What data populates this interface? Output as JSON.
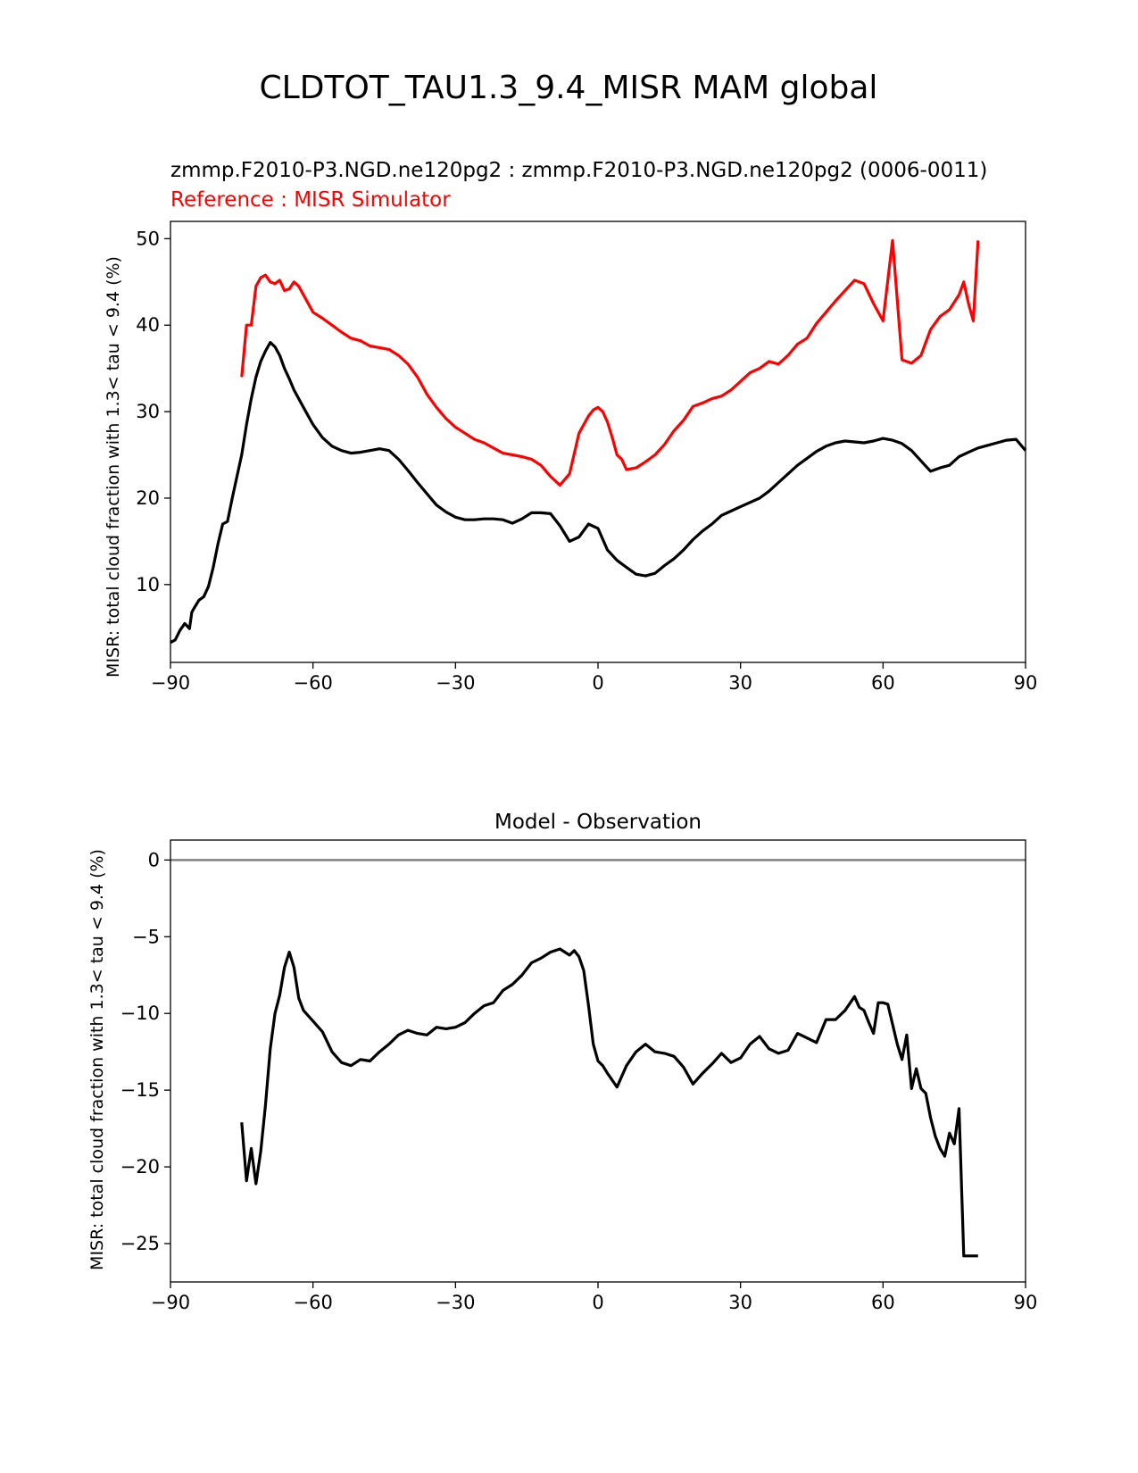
{
  "figure_title": "CLDTOT_TAU1.3_9.4_MISR MAM global",
  "colors": {
    "test": "#000000",
    "reference": "#ff0000",
    "zero_line": "#808080"
  },
  "chart_data": [
    {
      "type": "line",
      "title_left": "zmmp.F2010-P3.NGD.ne120pg2 : zmmp.F2010-P3.NGD.ne120pg2 (0006-0011)",
      "title_ref": "Reference : MISR Simulator",
      "xlabel": "",
      "ylabel": "MISR: total cloud fraction with 1.3< tau < 9.4 (%)",
      "xlim": [
        -90,
        90
      ],
      "ylim": [
        1,
        52
      ],
      "xticks": [
        -90,
        -60,
        -30,
        0,
        30,
        60,
        90
      ],
      "xtick_labels": [
        "−90",
        "−60",
        "−30",
        "0",
        "30",
        "60",
        "90"
      ],
      "yticks": [
        10,
        20,
        30,
        40,
        50
      ],
      "ytick_labels": [
        "10",
        "20",
        "30",
        "40",
        "50"
      ],
      "series": [
        {
          "name": "zmmp.F2010-P3.NGD.ne120pg2",
          "color": "#000000",
          "x": [
            -90,
            -89,
            -88,
            -87,
            -86,
            -85.5,
            -85,
            -84,
            -83,
            -82,
            -81,
            -80,
            -79,
            -78,
            -77,
            -76,
            -75,
            -74,
            -73,
            -72,
            -71,
            -70,
            -69,
            -68,
            -67,
            -66,
            -65,
            -64,
            -63,
            -62,
            -60,
            -58,
            -56,
            -54,
            -52,
            -50,
            -48,
            -46,
            -44,
            -42,
            -40,
            -38,
            -36,
            -34,
            -32,
            -30,
            -28,
            -26,
            -24,
            -22,
            -20,
            -18,
            -16,
            -14,
            -12,
            -10,
            -8,
            -6,
            -4,
            -2,
            0,
            2,
            4,
            6,
            8,
            10,
            12,
            14,
            16,
            18,
            20,
            22,
            24,
            26,
            28,
            30,
            32,
            34,
            36,
            38,
            40,
            42,
            44,
            46,
            48,
            50,
            52,
            54,
            56,
            58,
            60,
            62,
            64,
            66,
            68,
            70,
            72,
            74,
            76,
            78,
            80,
            82,
            84,
            86,
            88,
            90
          ],
          "y": [
            3.3,
            3.6,
            4.7,
            5.5,
            4.9,
            6.8,
            7.3,
            8.2,
            8.6,
            9.8,
            12.0,
            14.7,
            17.0,
            17.3,
            20.0,
            22.5,
            25.0,
            28.5,
            31.5,
            34.0,
            35.8,
            37.0,
            38.0,
            37.5,
            36.5,
            35.0,
            33.8,
            32.5,
            31.5,
            30.5,
            28.5,
            27.0,
            26.0,
            25.5,
            25.2,
            25.3,
            25.5,
            25.7,
            25.5,
            24.5,
            23.2,
            21.8,
            20.5,
            19.2,
            18.4,
            17.8,
            17.5,
            17.5,
            17.6,
            17.6,
            17.5,
            17.1,
            17.6,
            18.3,
            18.3,
            18.2,
            16.8,
            15.0,
            15.5,
            17.0,
            16.5,
            14.0,
            12.8,
            12.0,
            11.2,
            11.0,
            11.3,
            12.2,
            13.0,
            14.0,
            15.2,
            16.2,
            17.0,
            18.0,
            18.5,
            19.0,
            19.5,
            20.0,
            20.8,
            21.8,
            22.8,
            23.8,
            24.6,
            25.4,
            26.0,
            26.4,
            26.6,
            26.5,
            26.4,
            26.6,
            26.9,
            26.7,
            26.3,
            25.5,
            24.3,
            23.1,
            23.5,
            23.8,
            24.8,
            25.3,
            25.8,
            26.1,
            26.4,
            26.7,
            26.8,
            25.5
          ]
        },
        {
          "name": "MISR Simulator",
          "color": "#ff0000",
          "x": [
            -75,
            -74,
            -73,
            -72,
            -71,
            -70,
            -69,
            -68,
            -67,
            -66,
            -65,
            -64,
            -63,
            -62,
            -60,
            -58,
            -56,
            -54,
            -52,
            -50,
            -48,
            -46,
            -44,
            -42,
            -40,
            -38,
            -36,
            -34,
            -32,
            -30,
            -28,
            -26,
            -24,
            -22,
            -20,
            -18,
            -16,
            -14,
            -12,
            -10,
            -8,
            -6,
            -4,
            -2,
            -1,
            0,
            1,
            2,
            3,
            4,
            5,
            6,
            8,
            10,
            12,
            14,
            16,
            18,
            20,
            22,
            24,
            26,
            28,
            30,
            32,
            34,
            36,
            38,
            40,
            42,
            44,
            46,
            48,
            50,
            52,
            54,
            56,
            58,
            60,
            62,
            64,
            66,
            68,
            69,
            70,
            72,
            74,
            76,
            77,
            78,
            79,
            80
          ],
          "y": [
            34.0,
            40.0,
            40.0,
            44.5,
            45.5,
            45.8,
            45.0,
            44.8,
            45.2,
            44.0,
            44.2,
            45.0,
            44.5,
            43.5,
            41.5,
            40.8,
            40.0,
            39.2,
            38.5,
            38.2,
            37.6,
            37.4,
            37.2,
            36.5,
            35.5,
            34.0,
            32.0,
            30.5,
            29.2,
            28.2,
            27.5,
            26.8,
            26.4,
            25.8,
            25.2,
            25.0,
            24.8,
            24.5,
            23.8,
            22.5,
            21.5,
            22.8,
            27.5,
            29.5,
            30.2,
            30.5,
            30.0,
            28.8,
            27.0,
            25.0,
            24.5,
            23.3,
            23.5,
            24.2,
            25.0,
            26.2,
            27.8,
            29.0,
            30.6,
            31.0,
            31.5,
            31.8,
            32.5,
            33.5,
            34.5,
            35.0,
            35.8,
            35.5,
            36.5,
            37.8,
            38.5,
            40.2,
            41.5,
            42.8,
            44.0,
            45.2,
            44.8,
            42.5,
            40.5,
            49.8,
            36.0,
            35.6,
            36.5,
            38.0,
            39.5,
            41.0,
            41.8,
            43.5,
            45.0,
            42.5,
            40.5,
            49.8
          ]
        }
      ]
    },
    {
      "type": "line",
      "title": "Model - Observation",
      "xlabel": "",
      "ylabel": "MISR: total cloud fraction with 1.3< tau < 9.4 (%)",
      "xlim": [
        -90,
        90
      ],
      "ylim": [
        -27.5,
        1.3
      ],
      "xticks": [
        -90,
        -60,
        -30,
        0,
        30,
        60,
        90
      ],
      "xtick_labels": [
        "−90",
        "−60",
        "−30",
        "0",
        "30",
        "60",
        "90"
      ],
      "yticks": [
        0,
        -5,
        -10,
        -15,
        -20,
        -25
      ],
      "ytick_labels": [
        "0",
        "−5",
        "−10",
        "−15",
        "−20",
        "−25"
      ],
      "zero_line": true,
      "series": [
        {
          "name": "Model - Observation",
          "color": "#000000",
          "x": [
            -75,
            -74,
            -73,
            -72,
            -71,
            -70,
            -69,
            -68,
            -67,
            -66,
            -65,
            -64,
            -63,
            -62,
            -60,
            -58,
            -56,
            -54,
            -52,
            -50,
            -48,
            -46,
            -44,
            -42,
            -40,
            -38,
            -36,
            -34,
            -32,
            -30,
            -28,
            -26,
            -24,
            -22,
            -20,
            -18,
            -16,
            -14,
            -12,
            -10,
            -8,
            -6,
            -5,
            -4,
            -3,
            -2,
            -1,
            0,
            1,
            2,
            4,
            6,
            8,
            10,
            12,
            14,
            16,
            18,
            20,
            22,
            24,
            26,
            28,
            30,
            32,
            34,
            36,
            38,
            40,
            42,
            44,
            46,
            48,
            50,
            52,
            54,
            55,
            56,
            57,
            58,
            59,
            60,
            61,
            62,
            63,
            64,
            65,
            66,
            67,
            68,
            69,
            70,
            71,
            72,
            73,
            74,
            75,
            76,
            77,
            78,
            79,
            80
          ],
          "y": [
            -17.1,
            -20.9,
            -18.8,
            -21.1,
            -19.0,
            -16.0,
            -12.3,
            -10.0,
            -8.8,
            -7.0,
            -6.0,
            -7.0,
            -9.0,
            -9.8,
            -10.5,
            -11.2,
            -12.5,
            -13.2,
            -13.4,
            -13.0,
            -13.1,
            -12.5,
            -12.0,
            -11.4,
            -11.1,
            -11.3,
            -11.4,
            -10.9,
            -11.0,
            -10.9,
            -10.6,
            -10.0,
            -9.5,
            -9.3,
            -8.5,
            -8.1,
            -7.5,
            -6.7,
            -6.4,
            -6.0,
            -5.8,
            -6.2,
            -5.9,
            -6.3,
            -7.2,
            -9.5,
            -12.0,
            -13.1,
            -13.4,
            -13.9,
            -14.8,
            -13.4,
            -12.5,
            -12.0,
            -12.5,
            -12.6,
            -12.8,
            -13.5,
            -14.6,
            -13.9,
            -13.3,
            -12.6,
            -13.2,
            -12.9,
            -12.0,
            -11.5,
            -12.3,
            -12.6,
            -12.4,
            -11.3,
            -11.6,
            -11.9,
            -10.4,
            -10.4,
            -9.8,
            -8.9,
            -9.6,
            -9.8,
            -10.6,
            -11.3,
            -9.3,
            -9.3,
            -9.4,
            -10.7,
            -12.0,
            -13.0,
            -11.4,
            -14.9,
            -13.6,
            -14.9,
            -15.2,
            -16.8,
            -18.0,
            -18.8,
            -19.3,
            -17.8,
            -18.5,
            -16.2,
            -25.8,
            -25.8,
            -25.8,
            -25.8
          ]
        }
      ]
    }
  ]
}
